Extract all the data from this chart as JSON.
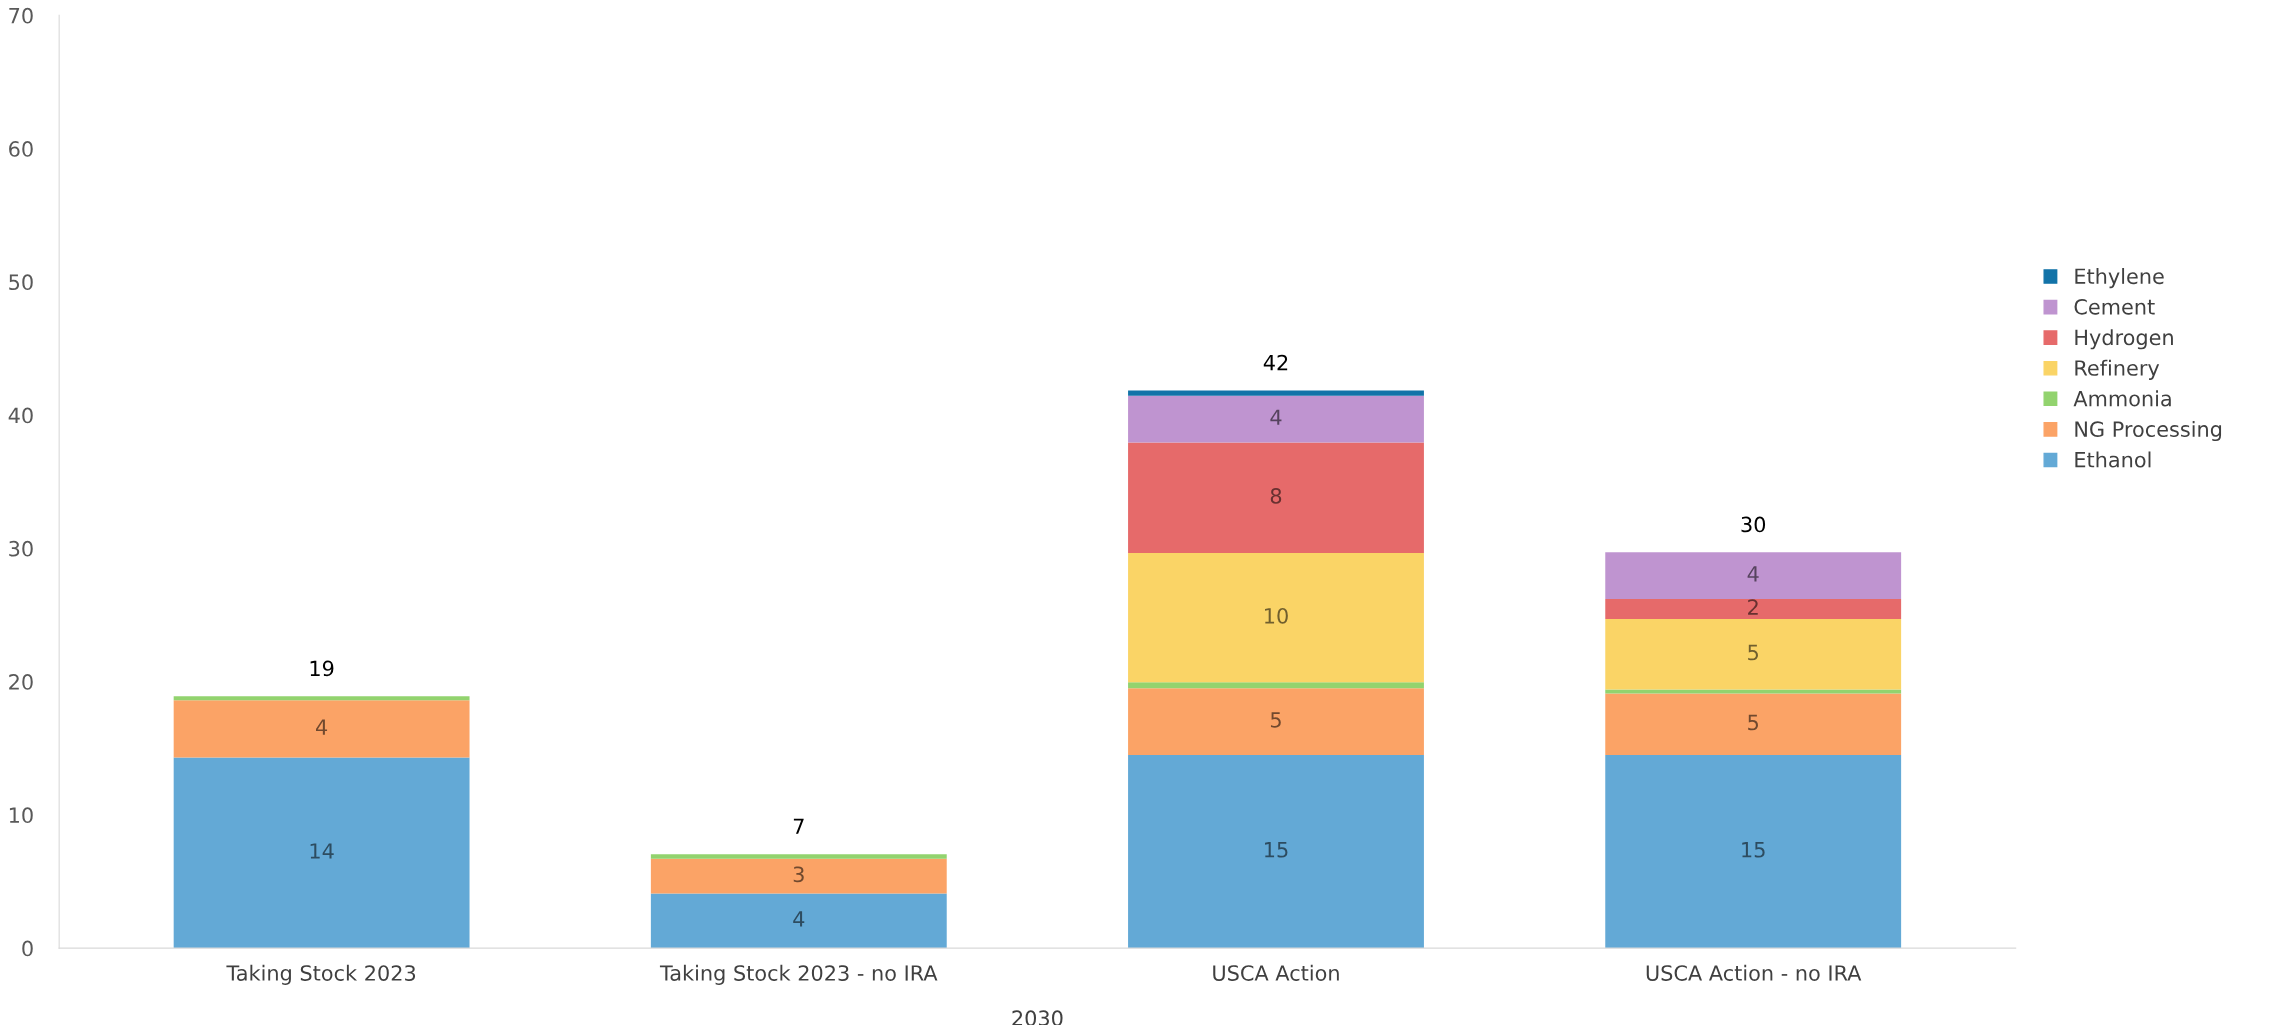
{
  "chart_data": {
    "type": "bar",
    "stacked": true,
    "xlabel": "2030",
    "categories": [
      "Taking Stock 2023",
      "Taking Stock 2023 - no IRA",
      "USCA Action",
      "USCA Action - no IRA"
    ],
    "series": [
      {
        "name": "Ethanol",
        "color": "#63a9d6",
        "values": [
          14.3,
          4.1,
          14.5,
          14.5
        ],
        "value_labels": [
          "14",
          "4",
          "15",
          "15"
        ]
      },
      {
        "name": "NG Processing",
        "color": "#fba366",
        "values": [
          4.3,
          2.6,
          5.0,
          4.6
        ],
        "value_labels": [
          "4",
          "3",
          "5",
          "5"
        ]
      },
      {
        "name": "Ammonia",
        "color": "#92d36e",
        "values": [
          0.3,
          0.35,
          0.45,
          0.3
        ]
      },
      {
        "name": "Refinery",
        "color": "#fad466",
        "values": [
          null,
          null,
          9.7,
          5.3
        ],
        "value_labels": [
          null,
          null,
          "10",
          "5"
        ]
      },
      {
        "name": "Hydrogen",
        "color": "#e66a6a",
        "values": [
          null,
          null,
          8.3,
          1.5
        ],
        "value_labels": [
          null,
          null,
          "8",
          "2"
        ]
      },
      {
        "name": "Cement",
        "color": "#bf94d0",
        "values": [
          null,
          null,
          3.5,
          3.5
        ],
        "value_labels": [
          null,
          null,
          "4",
          "4"
        ]
      },
      {
        "name": "Ethylene",
        "color": "#1273a8",
        "values": [
          null,
          null,
          0.4,
          null
        ]
      }
    ],
    "totals": [
      "19",
      "7",
      "42",
      "30"
    ],
    "ylim": [
      0,
      70
    ],
    "yticks": [
      0,
      10,
      20,
      30,
      40,
      50,
      60,
      70
    ],
    "grid": false,
    "legend": "right"
  }
}
